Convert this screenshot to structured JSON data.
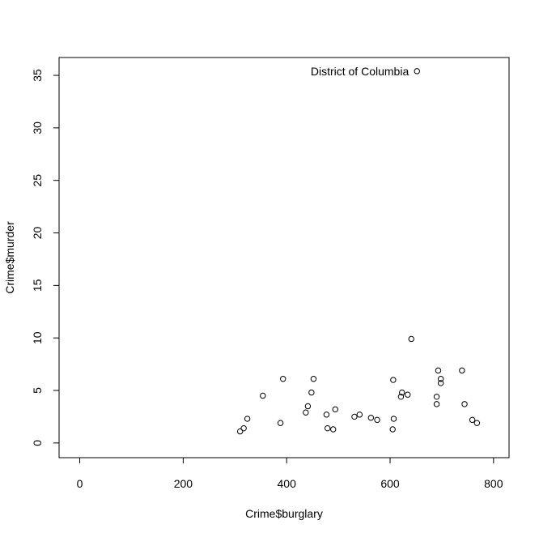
{
  "chart_data": {
    "type": "scatter",
    "title": "",
    "xlabel": "Crime$burglary",
    "ylabel": "Crime$murder",
    "xlim": [
      -40,
      830
    ],
    "ylim": [
      -1.4,
      36.7
    ],
    "x_ticks": [
      0,
      200,
      400,
      600,
      800
    ],
    "y_ticks": [
      0,
      5,
      10,
      15,
      20,
      25,
      30,
      35
    ],
    "grid": false,
    "legend": "none",
    "points": [
      {
        "x": 310,
        "y": 1.1
      },
      {
        "x": 317,
        "y": 1.4
      },
      {
        "x": 324,
        "y": 2.3
      },
      {
        "x": 354,
        "y": 4.5
      },
      {
        "x": 388,
        "y": 1.9
      },
      {
        "x": 393,
        "y": 6.1
      },
      {
        "x": 437,
        "y": 2.9
      },
      {
        "x": 441,
        "y": 3.5
      },
      {
        "x": 448,
        "y": 4.8
      },
      {
        "x": 452,
        "y": 6.1
      },
      {
        "x": 477,
        "y": 2.7
      },
      {
        "x": 479,
        "y": 1.4
      },
      {
        "x": 490,
        "y": 1.3
      },
      {
        "x": 494,
        "y": 3.2
      },
      {
        "x": 531,
        "y": 2.5
      },
      {
        "x": 541,
        "y": 2.7
      },
      {
        "x": 563,
        "y": 2.4
      },
      {
        "x": 575,
        "y": 2.2
      },
      {
        "x": 605,
        "y": 1.3
      },
      {
        "x": 607,
        "y": 2.3
      },
      {
        "x": 606,
        "y": 6.0
      },
      {
        "x": 621,
        "y": 4.4
      },
      {
        "x": 623,
        "y": 4.8
      },
      {
        "x": 634,
        "y": 4.6
      },
      {
        "x": 641,
        "y": 9.9
      },
      {
        "x": 652,
        "y": 35.4
      },
      {
        "x": 690,
        "y": 3.7
      },
      {
        "x": 690,
        "y": 4.4
      },
      {
        "x": 693,
        "y": 6.9
      },
      {
        "x": 698,
        "y": 5.7
      },
      {
        "x": 698,
        "y": 6.1
      },
      {
        "x": 739,
        "y": 6.9
      },
      {
        "x": 744,
        "y": 3.7
      },
      {
        "x": 759,
        "y": 2.2
      },
      {
        "x": 768,
        "y": 1.9
      }
    ],
    "annotations": [
      {
        "text": "District of Columbia",
        "x": 652,
        "y": 35.4,
        "position": "left"
      }
    ]
  },
  "colors": {
    "point_stroke": "#000000",
    "frame": "#000000",
    "background": "#ffffff"
  }
}
